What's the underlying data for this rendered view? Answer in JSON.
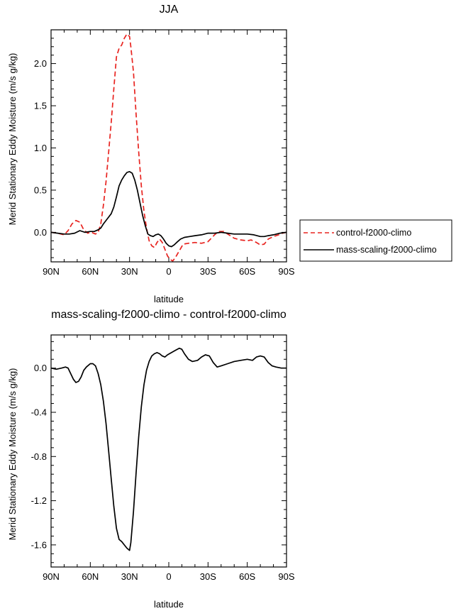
{
  "chart_data": [
    {
      "type": "line",
      "title": "JJA",
      "xlabel": "latitude",
      "ylabel": "Merid Stationary Eddy Moisture (m/s g/kg)",
      "xlim": [
        90,
        -90
      ],
      "ylim": [
        -0.35,
        2.4
      ],
      "x_ticks": [
        90,
        60,
        30,
        0,
        -30,
        -60,
        -90
      ],
      "x_tick_labels": [
        "90N",
        "60N",
        "30N",
        "0",
        "30S",
        "60S",
        "90S"
      ],
      "y_ticks": [
        0.0,
        0.5,
        1.0,
        1.5,
        2.0
      ],
      "y_tick_labels": [
        "0.0",
        "0.5",
        "1.0",
        "1.5",
        "2.0"
      ],
      "legend_position": "right",
      "series": [
        {
          "name": "control-f2000-climo",
          "color": "#e8231f",
          "dashed": true,
          "points": [
            [
              90,
              0.0
            ],
            [
              85,
              -0.01
            ],
            [
              80,
              -0.03
            ],
            [
              77,
              0.02
            ],
            [
              74,
              0.1
            ],
            [
              71,
              0.14
            ],
            [
              68,
              0.12
            ],
            [
              65,
              0.03
            ],
            [
              62,
              -0.01
            ],
            [
              59,
              0.0
            ],
            [
              56,
              -0.02
            ],
            [
              54,
              0.0
            ],
            [
              52,
              0.1
            ],
            [
              50,
              0.32
            ],
            [
              48,
              0.6
            ],
            [
              46,
              0.95
            ],
            [
              44,
              1.3
            ],
            [
              42,
              1.7
            ],
            [
              40,
              2.08
            ],
            [
              38,
              2.18
            ],
            [
              36,
              2.22
            ],
            [
              34,
              2.3
            ],
            [
              32,
              2.35
            ],
            [
              30,
              2.32
            ],
            [
              29,
              2.2
            ],
            [
              27,
              1.9
            ],
            [
              25,
              1.4
            ],
            [
              23,
              0.95
            ],
            [
              21,
              0.55
            ],
            [
              19,
              0.25
            ],
            [
              17,
              0.05
            ],
            [
              15,
              -0.1
            ],
            [
              13,
              -0.16
            ],
            [
              11,
              -0.18
            ],
            [
              9,
              -0.12
            ],
            [
              7,
              -0.08
            ],
            [
              5,
              -0.12
            ],
            [
              3,
              -0.2
            ],
            [
              1,
              -0.28
            ],
            [
              -1,
              -0.32
            ],
            [
              -3,
              -0.34
            ],
            [
              -5,
              -0.3
            ],
            [
              -8,
              -0.22
            ],
            [
              -11,
              -0.14
            ],
            [
              -15,
              -0.13
            ],
            [
              -20,
              -0.12
            ],
            [
              -25,
              -0.13
            ],
            [
              -30,
              -0.11
            ],
            [
              -35,
              -0.03
            ],
            [
              -38,
              0.01
            ],
            [
              -42,
              0.01
            ],
            [
              -46,
              -0.03
            ],
            [
              -50,
              -0.07
            ],
            [
              -55,
              -0.09
            ],
            [
              -60,
              -0.1
            ],
            [
              -63,
              -0.09
            ],
            [
              -67,
              -0.12
            ],
            [
              -70,
              -0.15
            ],
            [
              -73,
              -0.14
            ],
            [
              -76,
              -0.08
            ],
            [
              -80,
              -0.05
            ],
            [
              -84,
              -0.03
            ],
            [
              -87,
              -0.01
            ],
            [
              -90,
              0.0
            ]
          ]
        },
        {
          "name": "mass-scaling-f2000-climo",
          "color": "#000000",
          "dashed": false,
          "points": [
            [
              90,
              0.0
            ],
            [
              85,
              -0.01
            ],
            [
              80,
              -0.02
            ],
            [
              76,
              -0.02
            ],
            [
              72,
              -0.01
            ],
            [
              68,
              0.02
            ],
            [
              64,
              0.0
            ],
            [
              60,
              0.01
            ],
            [
              57,
              0.01
            ],
            [
              54,
              0.03
            ],
            [
              52,
              0.05
            ],
            [
              50,
              0.1
            ],
            [
              47,
              0.16
            ],
            [
              44,
              0.22
            ],
            [
              42,
              0.3
            ],
            [
              40,
              0.42
            ],
            [
              38,
              0.55
            ],
            [
              36,
              0.62
            ],
            [
              34,
              0.67
            ],
            [
              32,
              0.71
            ],
            [
              30,
              0.72
            ],
            [
              28,
              0.7
            ],
            [
              26,
              0.62
            ],
            [
              24,
              0.5
            ],
            [
              22,
              0.35
            ],
            [
              20,
              0.2
            ],
            [
              18,
              0.08
            ],
            [
              16,
              -0.02
            ],
            [
              14,
              -0.04
            ],
            [
              12,
              -0.05
            ],
            [
              10,
              -0.03
            ],
            [
              8,
              -0.02
            ],
            [
              6,
              -0.04
            ],
            [
              4,
              -0.08
            ],
            [
              2,
              -0.13
            ],
            [
              0,
              -0.16
            ],
            [
              -2,
              -0.17
            ],
            [
              -4,
              -0.15
            ],
            [
              -6,
              -0.12
            ],
            [
              -9,
              -0.08
            ],
            [
              -12,
              -0.06
            ],
            [
              -16,
              -0.05
            ],
            [
              -20,
              -0.04
            ],
            [
              -25,
              -0.03
            ],
            [
              -30,
              -0.01
            ],
            [
              -35,
              -0.01
            ],
            [
              -40,
              0.0
            ],
            [
              -45,
              -0.01
            ],
            [
              -50,
              -0.02
            ],
            [
              -55,
              -0.02
            ],
            [
              -60,
              -0.02
            ],
            [
              -65,
              -0.03
            ],
            [
              -70,
              -0.05
            ],
            [
              -73,
              -0.05
            ],
            [
              -76,
              -0.04
            ],
            [
              -80,
              -0.03
            ],
            [
              -85,
              -0.01
            ],
            [
              -90,
              0.0
            ]
          ]
        }
      ]
    },
    {
      "type": "line",
      "title": "mass-scaling-f2000-climo - control-f2000-climo",
      "xlabel": "latitude",
      "ylabel": "Merid Stationary Eddy Moisture (m/s g/kg)",
      "xlim": [
        90,
        -90
      ],
      "ylim": [
        -1.8,
        0.3
      ],
      "x_ticks": [
        90,
        60,
        30,
        0,
        -30,
        -60,
        -90
      ],
      "x_tick_labels": [
        "90N",
        "60N",
        "30N",
        "0",
        "30S",
        "60S",
        "90S"
      ],
      "y_ticks": [
        0.0,
        -0.4,
        -0.8,
        -1.2,
        -1.6
      ],
      "y_tick_labels": [
        "0.0",
        "-0.4",
        "-0.8",
        "-1.2",
        "-1.6"
      ],
      "series": [
        {
          "color": "#000000",
          "dashed": false,
          "points": [
            [
              90,
              0.0
            ],
            [
              86,
              -0.01
            ],
            [
              82,
              0.0
            ],
            [
              79,
              0.01
            ],
            [
              77,
              0.0
            ],
            [
              75,
              -0.05
            ],
            [
              73,
              -0.1
            ],
            [
              71,
              -0.13
            ],
            [
              69,
              -0.12
            ],
            [
              67,
              -0.08
            ],
            [
              65,
              -0.02
            ],
            [
              63,
              0.01
            ],
            [
              60,
              0.04
            ],
            [
              58,
              0.04
            ],
            [
              56,
              0.02
            ],
            [
              54,
              -0.05
            ],
            [
              52,
              -0.15
            ],
            [
              50,
              -0.3
            ],
            [
              48,
              -0.5
            ],
            [
              46,
              -0.75
            ],
            [
              44,
              -1.0
            ],
            [
              42,
              -1.25
            ],
            [
              40,
              -1.45
            ],
            [
              38,
              -1.55
            ],
            [
              36,
              -1.57
            ],
            [
              34,
              -1.6
            ],
            [
              32,
              -1.63
            ],
            [
              30,
              -1.65
            ],
            [
              29,
              -1.58
            ],
            [
              27,
              -1.3
            ],
            [
              25,
              -0.95
            ],
            [
              23,
              -0.62
            ],
            [
              21,
              -0.35
            ],
            [
              19,
              -0.15
            ],
            [
              17,
              -0.02
            ],
            [
              15,
              0.06
            ],
            [
              13,
              0.11
            ],
            [
              11,
              0.13
            ],
            [
              9,
              0.14
            ],
            [
              7,
              0.13
            ],
            [
              5,
              0.11
            ],
            [
              3,
              0.1
            ],
            [
              1,
              0.12
            ],
            [
              -2,
              0.14
            ],
            [
              -5,
              0.16
            ],
            [
              -8,
              0.18
            ],
            [
              -10,
              0.17
            ],
            [
              -12,
              0.13
            ],
            [
              -15,
              0.08
            ],
            [
              -18,
              0.06
            ],
            [
              -22,
              0.07
            ],
            [
              -25,
              0.1
            ],
            [
              -28,
              0.12
            ],
            [
              -31,
              0.11
            ],
            [
              -34,
              0.05
            ],
            [
              -37,
              0.01
            ],
            [
              -40,
              0.02
            ],
            [
              -45,
              0.04
            ],
            [
              -50,
              0.06
            ],
            [
              -55,
              0.07
            ],
            [
              -60,
              0.08
            ],
            [
              -64,
              0.07
            ],
            [
              -67,
              0.1
            ],
            [
              -70,
              0.11
            ],
            [
              -73,
              0.1
            ],
            [
              -76,
              0.05
            ],
            [
              -79,
              0.02
            ],
            [
              -82,
              0.01
            ],
            [
              -86,
              0.0
            ],
            [
              -90,
              0.0
            ]
          ]
        }
      ]
    }
  ]
}
